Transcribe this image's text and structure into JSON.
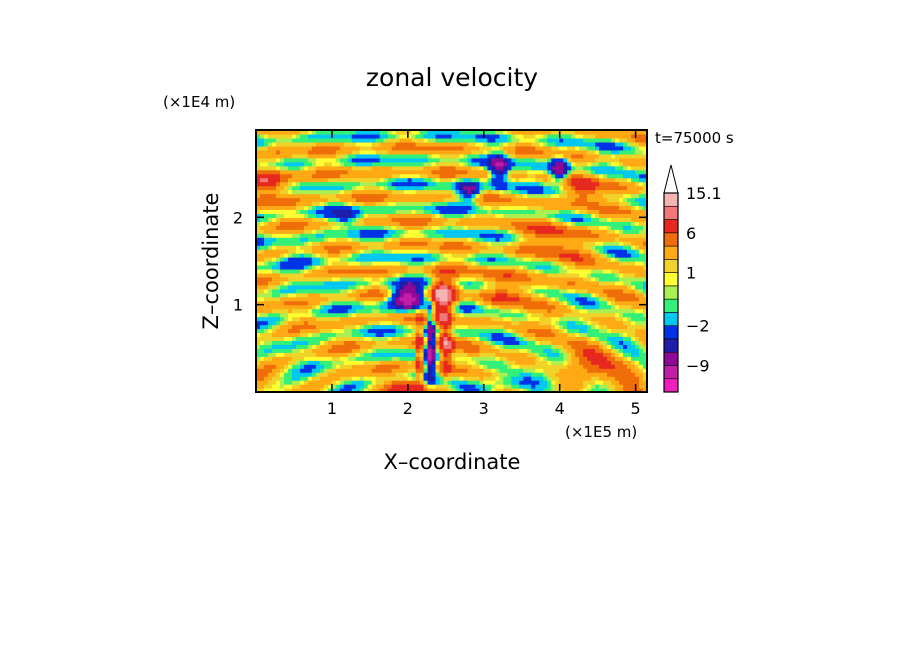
{
  "chart_data": {
    "type": "heatmap",
    "title": "zonal velocity",
    "xlabel": "X–coordinate",
    "ylabel": "Z–coordinate",
    "x_unit_label": "(×1E5 m)",
    "y_unit_label": "(×1E4 m)",
    "time_label": "t=75000 s",
    "xlim": [
      0,
      5.15
    ],
    "ylim": [
      0,
      3.0
    ],
    "x_ticks": [
      1,
      2,
      3,
      4,
      5
    ],
    "x_tick_labels": [
      "1",
      "2",
      "3",
      "4",
      "5"
    ],
    "y_ticks": [
      1,
      2
    ],
    "y_tick_labels": [
      "1",
      "2"
    ],
    "colorbar": {
      "levels": [
        {
          "min": -15,
          "max": -12,
          "color": "#f01ebe"
        },
        {
          "min": -12,
          "max": -9,
          "color": "#c31eaa"
        },
        {
          "min": -9,
          "max": -6,
          "color": "#8c0a96"
        },
        {
          "min": -6,
          "max": -4,
          "color": "#1e1eaa"
        },
        {
          "min": -4,
          "max": -2,
          "color": "#0032e6"
        },
        {
          "min": -2,
          "max": -1,
          "color": "#00c8f0"
        },
        {
          "min": -1,
          "max": 0,
          "color": "#32f078"
        },
        {
          "min": 0,
          "max": 0.5,
          "color": "#aaf050"
        },
        {
          "min": 0.5,
          "max": 1,
          "color": "#ffff32"
        },
        {
          "min": 1,
          "max": 2,
          "color": "#f0d228"
        },
        {
          "min": 2,
          "max": 4,
          "color": "#ffaa14"
        },
        {
          "min": 4,
          "max": 6,
          "color": "#f06e0a"
        },
        {
          "min": 6,
          "max": 9,
          "color": "#e6281e"
        },
        {
          "min": 9,
          "max": 12,
          "color": "#f07878"
        },
        {
          "min": 12,
          "max": 15.1,
          "color": "#f5b4b4"
        }
      ],
      "labels": [
        "15.1",
        "6",
        "1",
        "−2",
        "−9"
      ],
      "label_values": [
        15.1,
        6,
        1,
        -2,
        -9
      ],
      "extend_max_color": "#ffffff"
    },
    "features": [
      {
        "x": 2.45,
        "z": 1.1,
        "u": 12,
        "sx": 0.18,
        "sz": 0.22
      },
      {
        "x": 2.0,
        "z": 1.1,
        "u": -14,
        "sx": 0.22,
        "sz": 0.13
      },
      {
        "x": 2.3,
        "z": 0.6,
        "u": -10,
        "sx": 0.06,
        "sz": 0.45
      },
      {
        "x": 2.5,
        "z": 0.55,
        "u": 8,
        "sx": 0.08,
        "sz": 0.35
      },
      {
        "x": 2.15,
        "z": 0.4,
        "u": 7,
        "sx": 0.05,
        "sz": 0.3
      },
      {
        "x": 2.0,
        "z": 0.08,
        "u": 6,
        "sx": 0.25,
        "sz": 0.08
      },
      {
        "x": 3.3,
        "z": 0.1,
        "u": -5,
        "sx": 0.3,
        "sz": 0.1
      },
      {
        "x": 0.2,
        "z": 2.4,
        "u": 6,
        "sx": 0.3,
        "sz": 0.2
      },
      {
        "x": 2.8,
        "z": 2.3,
        "u": -8,
        "sx": 0.15,
        "sz": 0.12
      },
      {
        "x": 3.2,
        "z": 2.55,
        "u": -9,
        "sx": 0.12,
        "sz": 0.18
      },
      {
        "x": 4.0,
        "z": 2.55,
        "u": -10,
        "sx": 0.12,
        "sz": 0.15
      },
      {
        "x": 4.3,
        "z": 2.3,
        "u": 6,
        "sx": 0.25,
        "sz": 0.15
      },
      {
        "x": 4.0,
        "z": 1.75,
        "u": 4,
        "sx": 0.45,
        "sz": 0.2
      },
      {
        "x": 1.2,
        "z": 2.0,
        "u": -5,
        "sx": 0.2,
        "sz": 0.1
      },
      {
        "x": 3.5,
        "z": 1.2,
        "u": 3,
        "sx": 0.4,
        "sz": 0.25
      },
      {
        "x": 0.6,
        "z": 1.6,
        "u": -2,
        "sx": 0.25,
        "sz": 0.15
      },
      {
        "x": 4.5,
        "z": 0.3,
        "u": 4,
        "sx": 0.4,
        "sz": 0.2
      }
    ]
  }
}
